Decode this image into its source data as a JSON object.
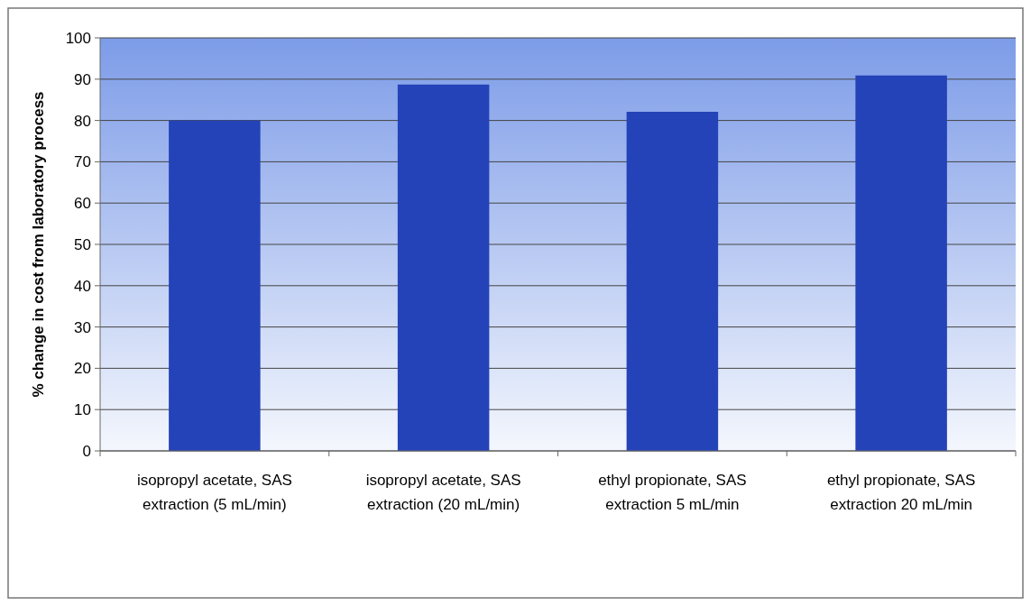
{
  "chart_data": {
    "type": "bar",
    "ylabel": "% change in cost from laboratory process",
    "categories": [
      "isopropyl acetate, SAS extraction (5 mL/min)",
      "isopropyl acetate, SAS extraction (20 mL/min)",
      "ethyl propionate, SAS extraction 5 mL/min",
      "ethyl propionate, SAS extraction 20 mL/min"
    ],
    "values": [
      80,
      88.7,
      82.1,
      90.9
    ],
    "color": "#2443b8",
    "ylim": [
      0,
      100
    ],
    "yticks": [
      0,
      10,
      20,
      30,
      40,
      50,
      60,
      70,
      80,
      90,
      100
    ],
    "grid": "y"
  }
}
